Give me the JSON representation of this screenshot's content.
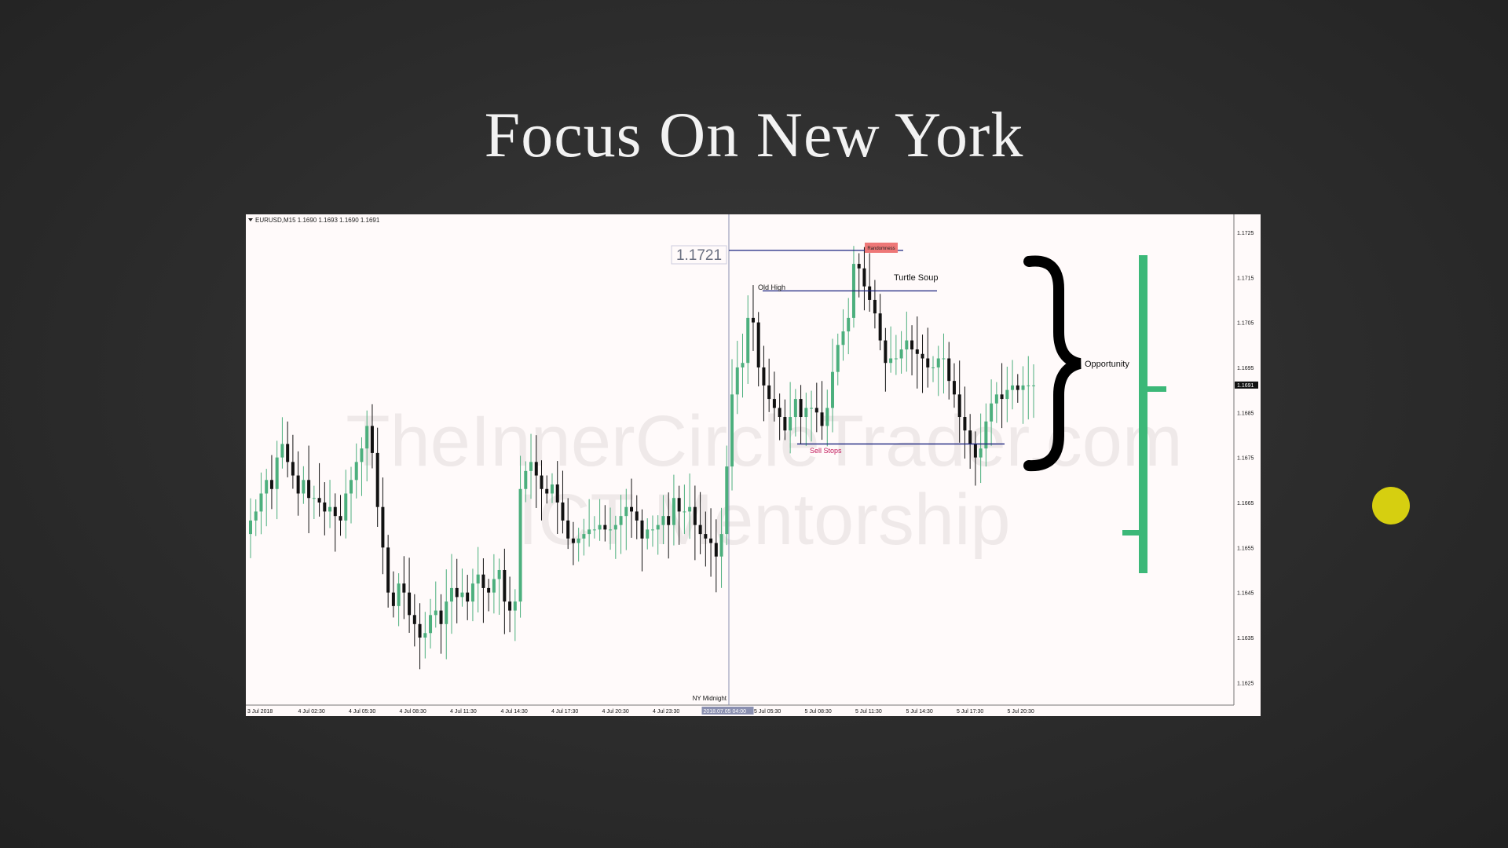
{
  "slide": {
    "title": "Focus On New York"
  },
  "chart_header": "EURUSD,M15  1.1690 1.1693 1.1690 1.1691",
  "colors": {
    "bull": "#4caf7d",
    "bear": "#111111",
    "line": "#1a237e",
    "vline": "#8a8fb0",
    "sellstops": "#c2185b",
    "bracket": "#3cb878",
    "random_label_bg": "#ee7777",
    "cursor_dot": "#d6cf10"
  },
  "price_axis": {
    "ticks": [
      "1.1725",
      "1.1715",
      "1.1705",
      "1.1695",
      "1.1685",
      "1.1675",
      "1.1665",
      "1.1655",
      "1.1645",
      "1.1635",
      "1.1625"
    ],
    "current_price": "1.1691",
    "ylim": [
      1.162,
      1.1729
    ]
  },
  "time_axis": {
    "ticks": [
      "3 Jul 2018",
      "4 Jul 02:30",
      "4 Jul 05:30",
      "4 Jul 08:30",
      "4 Jul 11:30",
      "4 Jul 14:30",
      "4 Jul 17:30",
      "4 Jul 20:30",
      "4 Jul 23:30",
      "2018.07.05 04:00",
      "5 Jul 05:30",
      "5 Jul 08:30",
      "5 Jul 11:30",
      "5 Jul 14:30",
      "5 Jul 17:30",
      "5 Jul 20:30"
    ],
    "highlighted_tick": "2018.07.05 04:00"
  },
  "annotations": {
    "price_box": "1.1721",
    "randomness": "Randomness",
    "turtle_soup": "Turtle Soup",
    "old_high": "Old High",
    "sell_stops": "Sell Stops",
    "ny_midnight": "NY Midnight",
    "opportunity": "Opportunity"
  },
  "levels": {
    "top_line": 1.1721,
    "old_high": 1.1712,
    "sell_stops": 1.1678
  },
  "watermark": {
    "line1": "TheInnerCircleTrader.com",
    "line2": "ICT Mentorship"
  },
  "chart_data": {
    "type": "candlestick",
    "symbol": "EURUSD",
    "timeframe": "M15",
    "closes": [
      1.1661,
      1.1663,
      1.1667,
      1.167,
      1.1668,
      1.1675,
      1.1678,
      1.1674,
      1.1671,
      1.1667,
      1.167,
      1.1666,
      1.1666,
      1.1665,
      1.1663,
      1.1664,
      1.1662,
      1.1661,
      1.1667,
      1.167,
      1.1674,
      1.1677,
      1.1682,
      1.1676,
      1.1664,
      1.1655,
      1.1645,
      1.1642,
      1.1647,
      1.1645,
      1.164,
      1.1638,
      1.1635,
      1.1636,
      1.164,
      1.1641,
      1.1638,
      1.1643,
      1.1646,
      1.1644,
      1.1645,
      1.1643,
      1.1647,
      1.1649,
      1.1646,
      1.1645,
      1.1648,
      1.165,
      1.1643,
      1.1641,
      1.1643,
      1.1668,
      1.1672,
      1.1674,
      1.1671,
      1.1668,
      1.1667,
      1.1669,
      1.1665,
      1.1661,
      1.1657,
      1.1656,
      1.1657,
      1.1658,
      1.1659,
      1.1659,
      1.166,
      1.1659,
      1.1659,
      1.166,
      1.1662,
      1.1664,
      1.1663,
      1.1661,
      1.1657,
      1.1659,
      1.1659,
      1.166,
      1.1662,
      1.166,
      1.1666,
      1.1663,
      1.1663,
      1.1664,
      1.166,
      1.1658,
      1.1657,
      1.1656,
      1.1653,
      1.1658,
      1.1673,
      1.1689,
      1.1695,
      1.1696,
      1.1706,
      1.1705,
      1.1695,
      1.1691,
      1.1688,
      1.1686,
      1.1684,
      1.1681,
      1.1684,
      1.1688,
      1.1684,
      1.1686,
      1.1686,
      1.1685,
      1.1682,
      1.1686,
      1.1694,
      1.17,
      1.1703,
      1.1706,
      1.1718,
      1.1717,
      1.1713,
      1.171,
      1.1707,
      1.1701,
      1.1696,
      1.1697,
      1.1697,
      1.1699,
      1.1701,
      1.1699,
      1.1698,
      1.1697,
      1.1695,
      1.1695,
      1.1697,
      1.1697,
      1.1692,
      1.1689,
      1.1684,
      1.1681,
      1.1678,
      1.1675,
      1.1677,
      1.1683,
      1.1687,
      1.1689,
      1.1688,
      1.169,
      1.1691,
      1.169,
      1.1691,
      1.1691,
      1.1691
    ]
  }
}
